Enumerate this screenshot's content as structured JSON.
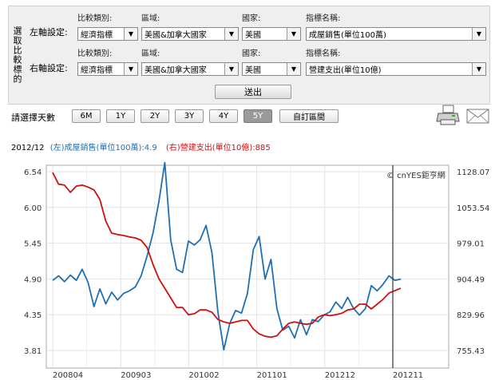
{
  "panel": {
    "side_label": "選取比較標的",
    "rows": [
      {
        "label": "左軸設定:",
        "fields": [
          {
            "label": "比較類別:",
            "value": "經濟指標"
          },
          {
            "label": "區域:",
            "value": "美國&加拿大國家"
          },
          {
            "label": "國家:",
            "value": "美國"
          },
          {
            "label": "指標名稱:",
            "value": "成屋銷售(單位100萬)"
          }
        ]
      },
      {
        "label": "右軸設定:",
        "fields": [
          {
            "label": "比較類別:",
            "value": "經濟指標"
          },
          {
            "label": "區域:",
            "value": "美國&加拿大國家"
          },
          {
            "label": "國家:",
            "value": "美國"
          },
          {
            "label": "指標名稱:",
            "value": "營建支出(單位10億)"
          }
        ]
      }
    ],
    "submit_label": "送出"
  },
  "range": {
    "label": "請選擇天數",
    "buttons": [
      "6M",
      "1Y",
      "2Y",
      "3Y",
      "4Y",
      "5Y",
      "自訂區間"
    ],
    "active": "5Y"
  },
  "legend": {
    "date": "2012/12",
    "left_text": "(左)成屋銷售(單位100萬):4.9",
    "right_text": "(右)營建支出(單位10億):885",
    "left_color": "#1f6fb2",
    "right_color": "#d01010"
  },
  "icons": [
    "print-icon",
    "email-icon"
  ],
  "chart_data": {
    "type": "line",
    "watermark": "© cnYES鉅亨網",
    "x_ticks": [
      "200804",
      "200903",
      "201002",
      "201101",
      "201212",
      "201211"
    ],
    "y_left_ticks": [
      "6.54",
      "6.00",
      "5.45",
      "4.90",
      "4.35",
      "3.81"
    ],
    "y_right_ticks": [
      "1128.07",
      "1053.54",
      "979.01",
      "904.49",
      "829.96",
      "755.43"
    ],
    "y_left_range": [
      3.81,
      6.54
    ],
    "y_right_range": [
      755.43,
      1128.07
    ],
    "series": [
      {
        "axis": "left",
        "color": "#1f6fb2",
        "values": [
          4.88,
          4.95,
          4.86,
          4.96,
          4.88,
          5.05,
          4.85,
          4.48,
          4.75,
          4.52,
          4.7,
          4.58,
          4.68,
          4.72,
          4.78,
          4.95,
          5.25,
          5.6,
          6.08,
          6.68,
          5.5,
          5.05,
          5.0,
          5.48,
          5.42,
          5.5,
          5.72,
          5.3,
          4.4,
          3.82,
          4.22,
          4.42,
          4.38,
          4.68,
          5.35,
          5.55,
          4.9,
          5.2,
          4.45,
          4.12,
          4.18,
          4.0,
          4.28,
          4.05,
          4.28,
          4.25,
          4.35,
          4.4,
          4.55,
          4.45,
          4.62,
          4.45,
          4.35,
          4.45,
          4.8,
          4.72,
          4.82,
          4.95,
          4.88,
          4.9
        ]
      },
      {
        "axis": "right",
        "color": "#d01010",
        "values": [
          1126,
          1102,
          1100,
          1085,
          1098,
          1100,
          1096,
          1090,
          1070,
          1025,
          1000,
          997,
          995,
          992,
          990,
          985,
          970,
          935,
          905,
          885,
          865,
          845,
          845,
          830,
          832,
          840,
          840,
          835,
          820,
          815,
          812,
          815,
          818,
          818,
          800,
          790,
          785,
          783,
          786,
          800,
          812,
          815,
          812,
          810,
          812,
          825,
          830,
          828,
          830,
          833,
          840,
          842,
          852,
          852,
          842,
          852,
          862,
          875,
          880,
          885
        ]
      }
    ]
  }
}
